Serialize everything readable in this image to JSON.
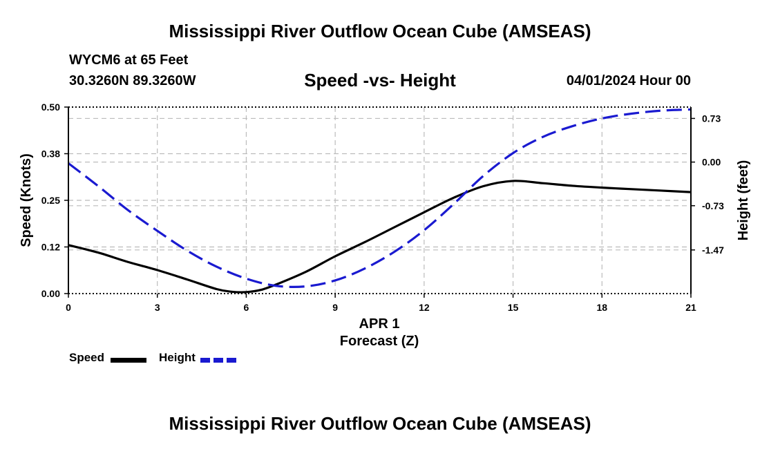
{
  "header": {
    "title": "Mississippi River Outflow Ocean Cube (AMSEAS)",
    "station": "WYCM6 at 65 Feet",
    "coords": "30.3260N  89.3260W",
    "subtitle": "Speed -vs- Height",
    "datetime": "04/01/2024 Hour 00"
  },
  "footer": {
    "title": "Mississippi River Outflow Ocean Cube (AMSEAS)"
  },
  "legend": {
    "speed_label": "Speed",
    "height_label": "Height"
  },
  "colors": {
    "speed": "#000000",
    "height": "#1a1ad0",
    "grid": "#bbbbbb"
  },
  "chart_data": {
    "type": "line",
    "title": "Speed -vs- Height",
    "xlabel": "Forecast (Z)",
    "x_date_label": "APR 1",
    "ylabel": "Speed (Knots)",
    "y2label": "Height (feet)",
    "xlim": [
      0,
      21
    ],
    "ylim": [
      0,
      0.5
    ],
    "y2lim": [
      -2.2,
      0.92
    ],
    "x_ticks": [
      0,
      3,
      6,
      9,
      12,
      15,
      18,
      21
    ],
    "x_tick_labels": [
      "0",
      "3",
      "6",
      "9",
      "12",
      "15",
      "18",
      "21"
    ],
    "y_ticks": [
      0,
      0.125,
      0.25,
      0.375,
      0.5
    ],
    "y_tick_labels": [
      "0.00",
      "0.12",
      "0.25",
      "0.38",
      "0.50"
    ],
    "y2_ticks": [
      -1.47,
      -0.73,
      0.0,
      0.73
    ],
    "y2_tick_labels": [
      "-1.47",
      "-0.73",
      "0.00",
      "0.73"
    ],
    "grid": true,
    "series": [
      {
        "name": "Speed",
        "axis": "left",
        "style": "solid",
        "x": [
          0,
          1,
          2,
          3,
          4,
          5,
          5.5,
          6,
          6.5,
          7,
          8,
          9,
          10,
          11,
          12,
          13,
          14,
          15,
          16,
          17,
          18,
          19,
          20,
          21
        ],
        "values": [
          0.13,
          0.11,
          0.085,
          0.063,
          0.038,
          0.012,
          0.005,
          0.004,
          0.01,
          0.024,
          0.058,
          0.1,
          0.138,
          0.178,
          0.218,
          0.257,
          0.288,
          0.302,
          0.296,
          0.289,
          0.284,
          0.28,
          0.276,
          0.272
        ]
      },
      {
        "name": "Height",
        "axis": "right",
        "style": "dashed",
        "x": [
          0,
          1,
          2,
          3,
          4,
          5,
          6,
          7,
          8,
          9,
          10,
          11,
          12,
          13,
          14,
          15,
          16,
          17,
          18,
          19,
          20,
          21
        ],
        "values": [
          -0.02,
          -0.4,
          -0.8,
          -1.15,
          -1.48,
          -1.75,
          -1.95,
          -2.07,
          -2.08,
          -1.98,
          -1.78,
          -1.5,
          -1.14,
          -0.7,
          -0.23,
          0.15,
          0.42,
          0.6,
          0.73,
          0.81,
          0.86,
          0.88
        ]
      }
    ]
  }
}
